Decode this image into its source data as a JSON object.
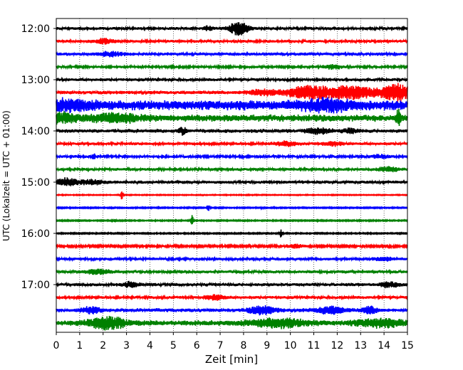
{
  "chart_data": {
    "type": "line",
    "subtype": "helicorder",
    "xlabel": "Zeit  [min]",
    "ylabel": "UTC (Lokalzeit = UTC + 01:00)",
    "xlim": [
      0,
      15
    ],
    "x_ticks": [
      "0",
      "1",
      "2",
      "3",
      "4",
      "5",
      "6",
      "7",
      "8",
      "9",
      "10",
      "11",
      "12",
      "13",
      "14",
      "15"
    ],
    "y_tick_labels": [
      "12:00",
      "13:00",
      "14:00",
      "15:00",
      "16:00",
      "17:00"
    ],
    "grid_x": true,
    "trace_colors": [
      "#000000",
      "#ff0000",
      "#0000ff",
      "#008000"
    ],
    "traces": [
      {
        "start": "12:00",
        "level": 0.2,
        "events": [
          {
            "t": 7.8,
            "amp": 1.0,
            "width": 0.4
          },
          {
            "t": 6.5,
            "amp": 0.35,
            "width": 0.2
          }
        ]
      },
      {
        "start": "12:15",
        "level": 0.2,
        "events": [
          {
            "t": 2.0,
            "amp": 0.35,
            "width": 0.4
          }
        ]
      },
      {
        "start": "12:30",
        "level": 0.22,
        "events": [
          {
            "t": 2.3,
            "amp": 0.3,
            "width": 0.5
          }
        ]
      },
      {
        "start": "12:45",
        "level": 0.18,
        "events": [
          {
            "t": 11.8,
            "amp": 0.3,
            "width": 0.4
          }
        ]
      },
      {
        "start": "13:00",
        "level": 0.2,
        "events": []
      },
      {
        "start": "13:15",
        "level": 0.25,
        "events": [
          {
            "t": 8.8,
            "amp": 0.4,
            "width": 0.6
          },
          {
            "t": 10.6,
            "amp": 0.7,
            "width": 0.8
          },
          {
            "t": 12.5,
            "amp": 0.9,
            "width": 1.5
          },
          {
            "t": 14.6,
            "amp": 1.1,
            "width": 0.6
          }
        ]
      },
      {
        "start": "13:30",
        "level": 0.65,
        "events": [
          {
            "t": 0.5,
            "amp": 0.5,
            "width": 1.0
          },
          {
            "t": 11.5,
            "amp": 0.6,
            "width": 1.0
          }
        ]
      },
      {
        "start": "13:45",
        "level": 0.45,
        "events": [
          {
            "t": 0.2,
            "amp": 0.6,
            "width": 0.6
          },
          {
            "t": 2.5,
            "amp": 0.5,
            "width": 1.0
          },
          {
            "t": 14.6,
            "amp": 1.2,
            "width": 0.08
          }
        ]
      },
      {
        "start": "14:00",
        "level": 0.25,
        "events": [
          {
            "t": 5.4,
            "amp": 0.5,
            "width": 0.15
          },
          {
            "t": 11.2,
            "amp": 0.4,
            "width": 0.5
          },
          {
            "t": 12.6,
            "amp": 0.3,
            "width": 0.3
          }
        ]
      },
      {
        "start": "14:15",
        "level": 0.2,
        "events": [
          {
            "t": 9.8,
            "amp": 0.3,
            "width": 0.5
          },
          {
            "t": 11.8,
            "amp": 0.3,
            "width": 0.4
          }
        ]
      },
      {
        "start": "14:30",
        "level": 0.18,
        "events": [
          {
            "t": 1.6,
            "amp": 0.5,
            "width": 0.06
          },
          {
            "t": 13.8,
            "amp": 0.25,
            "width": 0.4
          }
        ]
      },
      {
        "start": "14:45",
        "level": 0.2,
        "events": [
          {
            "t": 14.2,
            "amp": 0.35,
            "width": 0.4
          }
        ]
      },
      {
        "start": "15:00",
        "level": 0.22,
        "events": [
          {
            "t": 0.4,
            "amp": 0.5,
            "width": 0.5
          },
          {
            "t": 1.5,
            "amp": 0.3,
            "width": 0.5
          }
        ]
      },
      {
        "start": "15:15",
        "level": 0.06,
        "events": [
          {
            "t": 2.8,
            "amp": 0.7,
            "width": 0.05
          }
        ]
      },
      {
        "start": "15:30",
        "level": 0.08,
        "events": [
          {
            "t": 6.5,
            "amp": 0.5,
            "width": 0.05
          },
          {
            "t": 8.8,
            "amp": 0.2,
            "width": 0.05
          }
        ]
      },
      {
        "start": "15:45",
        "level": 0.08,
        "events": [
          {
            "t": 5.8,
            "amp": 1.0,
            "width": 0.06
          },
          {
            "t": 2.5,
            "amp": 0.25,
            "width": 0.05
          }
        ]
      },
      {
        "start": "16:00",
        "level": 0.08,
        "events": [
          {
            "t": 9.6,
            "amp": 0.6,
            "width": 0.06
          }
        ]
      },
      {
        "start": "16:15",
        "level": 0.15,
        "events": [
          {
            "t": 10.2,
            "amp": 0.25,
            "width": 0.4
          }
        ]
      },
      {
        "start": "16:30",
        "level": 0.2,
        "events": [
          {
            "t": 14.0,
            "amp": 0.25,
            "width": 0.4
          }
        ]
      },
      {
        "start": "16:45",
        "level": 0.22,
        "events": [
          {
            "t": 1.8,
            "amp": 0.3,
            "width": 0.5
          }
        ]
      },
      {
        "start": "17:00",
        "level": 0.22,
        "events": [
          {
            "t": 3.2,
            "amp": 0.35,
            "width": 0.3
          },
          {
            "t": 14.2,
            "amp": 0.35,
            "width": 0.4
          }
        ]
      },
      {
        "start": "17:15",
        "level": 0.2,
        "events": [
          {
            "t": 6.8,
            "amp": 0.35,
            "width": 0.4
          }
        ]
      },
      {
        "start": "17:30",
        "level": 0.25,
        "events": [
          {
            "t": 1.5,
            "amp": 0.45,
            "width": 0.4
          },
          {
            "t": 8.8,
            "amp": 0.55,
            "width": 0.6
          },
          {
            "t": 11.7,
            "amp": 0.5,
            "width": 0.6
          },
          {
            "t": 13.4,
            "amp": 0.5,
            "width": 0.3
          }
        ]
      },
      {
        "start": "17:45",
        "level": 0.35,
        "events": [
          {
            "t": 2.2,
            "amp": 0.8,
            "width": 0.8
          },
          {
            "t": 9.5,
            "amp": 0.55,
            "width": 1.2
          },
          {
            "t": 13.8,
            "amp": 0.5,
            "width": 1.0
          }
        ]
      }
    ]
  }
}
